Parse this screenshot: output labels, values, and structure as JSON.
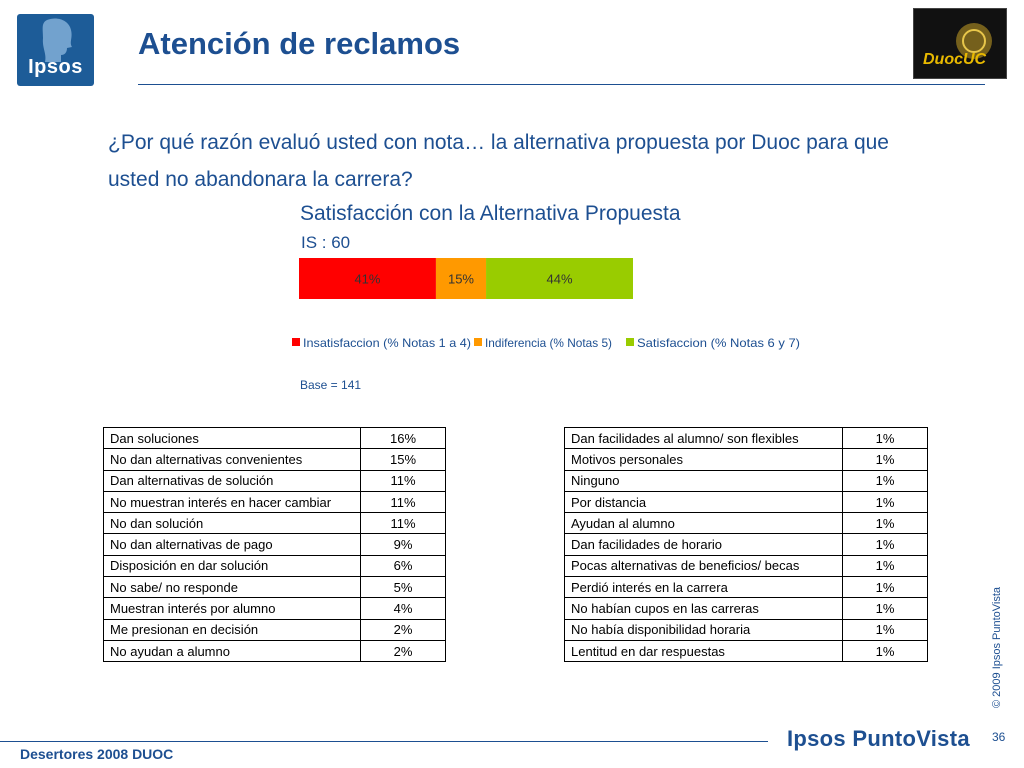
{
  "header": {
    "logo_text": "Ipsos",
    "title": "Atención de reclamos",
    "partner_logo_text": "DuocUC"
  },
  "question": "¿Por qué razón evaluó usted con nota… la alternativa propuesta por Duoc para que usted no abandonara la carrera?",
  "chart_data": {
    "type": "bar",
    "orientation": "horizontal-stacked",
    "title": "Satisfacción con la Alternativa Propuesta",
    "subtitle": "IS : 60",
    "categories": [
      ""
    ],
    "series": [
      {
        "name": "Insatisfaccion (% Notas 1 a 4)",
        "values": [
          41
        ],
        "label": "41%",
        "color": "#ff0000"
      },
      {
        "name": "Indiferencia (% Notas 5)",
        "values": [
          15
        ],
        "label": "15%",
        "color": "#ff9900"
      },
      {
        "name": "Satisfaccion (% Notas 6 y 7)",
        "values": [
          44
        ],
        "label": "44%",
        "color": "#99cc00"
      }
    ],
    "xlim": [
      0,
      100
    ],
    "legend_position": "bottom",
    "note": "Base = 141"
  },
  "table_left": [
    {
      "label": "Dan soluciones",
      "value": "16%"
    },
    {
      "label": "No dan alternativas convenientes",
      "value": "15%"
    },
    {
      "label": "Dan alternativas de solución",
      "value": "11%"
    },
    {
      "label": "No muestran interés en hacer cambiar",
      "value": "11%"
    },
    {
      "label": "No dan solución",
      "value": "11%"
    },
    {
      "label": "No dan alternativas de pago",
      "value": "9%"
    },
    {
      "label": "Disposición en dar solución",
      "value": "6%"
    },
    {
      "label": "No sabe/ no responde",
      "value": "5%"
    },
    {
      "label": "Muestran interés por alumno",
      "value": "4%"
    },
    {
      "label": "Me presionan en decisión",
      "value": "2%"
    },
    {
      "label": "No ayudan a alumno",
      "value": "2%"
    }
  ],
  "table_right": [
    {
      "label": "Dan facilidades al alumno/ son flexibles",
      "value": "1%"
    },
    {
      "label": "Motivos personales",
      "value": "1%"
    },
    {
      "label": "Ninguno",
      "value": "1%"
    },
    {
      "label": "Por distancia",
      "value": "1%"
    },
    {
      "label": "Ayudan al alumno",
      "value": "1%"
    },
    {
      "label": "Dan facilidades de horario",
      "value": "1%"
    },
    {
      "label": "Pocas alternativas de beneficios/ becas",
      "value": "1%"
    },
    {
      "label": "Perdió interés en la carrera",
      "value": "1%"
    },
    {
      "label": "No habían cupos en las carreras",
      "value": "1%"
    },
    {
      "label": "No había disponibilidad horaria",
      "value": "1%"
    },
    {
      "label": "Lentitud en dar respuestas",
      "value": "1%"
    }
  ],
  "footer": {
    "copyright": "© 2009 Ipsos PuntoVista",
    "left_text": "Desertores 2008 DUOC",
    "brand": "Ipsos PuntoVista",
    "page_number": "36"
  }
}
